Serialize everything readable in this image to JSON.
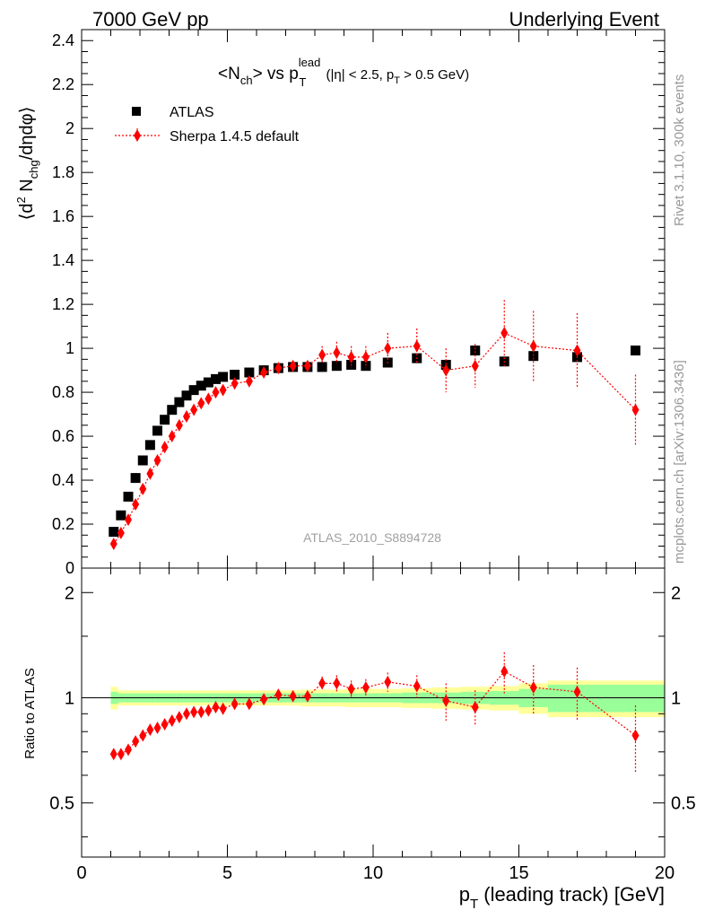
{
  "header": {
    "left": "7000 GeV pp",
    "right": "Underlying Event"
  },
  "side_text": {
    "rivet": "Rivet 3.1.10,  300k events",
    "mcplots": "mcplots.cern.ch [arXiv:1306.3436]"
  },
  "chart_data": [
    {
      "type": "scatter",
      "title_parts": {
        "a": "<N",
        "a_sub": "ch",
        "b": "> vs p",
        "b_sup": "lead",
        "b_sub": "T",
        "c": " (|η| < 2.5, p",
        "c_sub": "T",
        "d": " > 0.5 GeV)"
      },
      "ylabel_parts": {
        "a": "⟨d",
        "a_sup": "2",
        "b": " N",
        "b_sub": "chg",
        "c": "/dηdφ⟩"
      },
      "watermark": "ATLAS_2010_S8894728",
      "xlim": [
        0,
        20
      ],
      "ylim": [
        0,
        2.45
      ],
      "yticks": [
        0,
        0.2,
        0.4,
        0.6,
        0.8,
        1,
        1.2,
        1.4,
        1.6,
        1.8,
        2,
        2.2,
        2.4
      ],
      "ytick_labels": [
        "0",
        "0.2",
        "0.4",
        "0.6",
        "0.8",
        "1",
        "1.2",
        "1.4",
        "1.6",
        "1.8",
        "2",
        "2.2",
        "2.4"
      ],
      "legend_position": "top-left",
      "series": [
        {
          "name": "ATLAS",
          "marker": "square",
          "color": "#000000",
          "x": [
            1.1,
            1.35,
            1.6,
            1.85,
            2.1,
            2.35,
            2.6,
            2.85,
            3.1,
            3.35,
            3.6,
            3.85,
            4.1,
            4.35,
            4.6,
            4.85,
            5.25,
            5.75,
            6.25,
            6.75,
            7.25,
            7.75,
            8.25,
            8.75,
            9.25,
            9.75,
            10.5,
            11.5,
            12.5,
            13.5,
            14.5,
            15.5,
            17.0,
            19.0
          ],
          "y": [
            0.165,
            0.24,
            0.325,
            0.41,
            0.49,
            0.56,
            0.625,
            0.675,
            0.72,
            0.755,
            0.785,
            0.81,
            0.83,
            0.845,
            0.86,
            0.87,
            0.88,
            0.89,
            0.9,
            0.91,
            0.915,
            0.915,
            0.915,
            0.92,
            0.925,
            0.92,
            0.935,
            0.955,
            0.925,
            0.99,
            0.94,
            0.965,
            0.96,
            0.99
          ]
        },
        {
          "name": "Sherpa 1.4.5 default",
          "marker": "diamond",
          "color": "#ff0000",
          "x": [
            1.1,
            1.35,
            1.6,
            1.85,
            2.1,
            2.35,
            2.6,
            2.85,
            3.1,
            3.35,
            3.6,
            3.85,
            4.1,
            4.35,
            4.6,
            4.85,
            5.25,
            5.75,
            6.25,
            6.75,
            7.25,
            7.75,
            8.25,
            8.75,
            9.25,
            9.75,
            10.5,
            11.5,
            12.5,
            13.5,
            14.5,
            15.5,
            17.0,
            19.0
          ],
          "y": [
            0.11,
            0.16,
            0.22,
            0.29,
            0.36,
            0.43,
            0.49,
            0.55,
            0.6,
            0.65,
            0.69,
            0.72,
            0.75,
            0.77,
            0.8,
            0.81,
            0.84,
            0.85,
            0.89,
            0.91,
            0.92,
            0.92,
            0.97,
            0.98,
            0.96,
            0.96,
            1.0,
            1.01,
            0.9,
            0.92,
            1.07,
            1.01,
            0.99,
            0.72
          ],
          "yerr": [
            0,
            0,
            0,
            0,
            0,
            0,
            0,
            0,
            0,
            0,
            0,
            0,
            0,
            0,
            0,
            0,
            0,
            0,
            0,
            0,
            0,
            0,
            0.04,
            0.05,
            0.05,
            0.05,
            0.07,
            0.08,
            0.1,
            0.1,
            0.15,
            0.16,
            0.17,
            0.16
          ]
        }
      ]
    },
    {
      "type": "scatter",
      "ylabel": "Ratio to ATLAS",
      "xlabel_parts": {
        "a": "p",
        "a_sub": "T",
        "b": " (leading track) [GeV]"
      },
      "xlim": [
        0,
        20
      ],
      "ylim": [
        0.35,
        2.35
      ],
      "xticks": [
        0,
        5,
        10,
        15,
        20
      ],
      "xtick_labels": [
        "0",
        "5",
        "10",
        "15",
        "20"
      ],
      "yticks": [
        0.5,
        1,
        2
      ],
      "ytick_labels": [
        "0.5",
        "1",
        "2"
      ],
      "bands": {
        "x_edges": [
          1.0,
          1.25,
          1.5,
          1.75,
          2.0,
          2.25,
          2.5,
          2.75,
          3.0,
          3.25,
          3.5,
          3.75,
          4.0,
          4.25,
          4.5,
          4.75,
          5.0,
          5.5,
          6.0,
          6.5,
          7.0,
          7.5,
          8.0,
          8.5,
          9.0,
          9.5,
          10.0,
          11.0,
          12.0,
          13.0,
          14.0,
          15.0,
          16.0,
          18.0,
          20.0
        ],
        "inner": [
          0.04,
          0.03,
          0.03,
          0.03,
          0.03,
          0.03,
          0.03,
          0.03,
          0.03,
          0.03,
          0.03,
          0.03,
          0.03,
          0.03,
          0.03,
          0.03,
          0.03,
          0.03,
          0.03,
          0.03,
          0.03,
          0.03,
          0.03,
          0.03,
          0.03,
          0.03,
          0.03,
          0.035,
          0.035,
          0.04,
          0.045,
          0.06,
          0.09,
          0.09
        ],
        "outer": [
          0.075,
          0.05,
          0.05,
          0.05,
          0.05,
          0.05,
          0.05,
          0.05,
          0.05,
          0.05,
          0.05,
          0.05,
          0.05,
          0.05,
          0.05,
          0.05,
          0.05,
          0.05,
          0.05,
          0.05,
          0.05,
          0.055,
          0.055,
          0.055,
          0.06,
          0.06,
          0.06,
          0.065,
          0.07,
          0.075,
          0.08,
          0.1,
          0.12,
          0.12
        ],
        "inner_color": "#99ff99",
        "outer_color": "#ffff99"
      },
      "series": [
        {
          "name": "Sherpa 1.4.5 default",
          "marker": "diamond",
          "color": "#ff0000",
          "x": [
            1.1,
            1.35,
            1.6,
            1.85,
            2.1,
            2.35,
            2.6,
            2.85,
            3.1,
            3.35,
            3.6,
            3.85,
            4.1,
            4.35,
            4.6,
            4.85,
            5.25,
            5.75,
            6.25,
            6.75,
            7.25,
            7.75,
            8.25,
            8.75,
            9.25,
            9.75,
            10.5,
            11.5,
            12.5,
            13.5,
            14.5,
            15.5,
            17.0,
            19.0
          ],
          "y": [
            0.69,
            0.69,
            0.71,
            0.75,
            0.78,
            0.81,
            0.82,
            0.84,
            0.86,
            0.88,
            0.9,
            0.91,
            0.91,
            0.92,
            0.94,
            0.93,
            0.96,
            0.96,
            0.99,
            1.02,
            1.01,
            1.01,
            1.1,
            1.1,
            1.06,
            1.07,
            1.11,
            1.08,
            0.98,
            0.94,
            1.19,
            1.07,
            1.04,
            0.78
          ],
          "yerr": [
            0,
            0,
            0,
            0,
            0,
            0,
            0,
            0,
            0,
            0,
            0,
            0,
            0,
            0,
            0,
            0,
            0,
            0,
            0,
            0,
            0,
            0,
            0.05,
            0.06,
            0.06,
            0.06,
            0.07,
            0.08,
            0.12,
            0.11,
            0.16,
            0.17,
            0.18,
            0.17
          ]
        }
      ]
    }
  ]
}
